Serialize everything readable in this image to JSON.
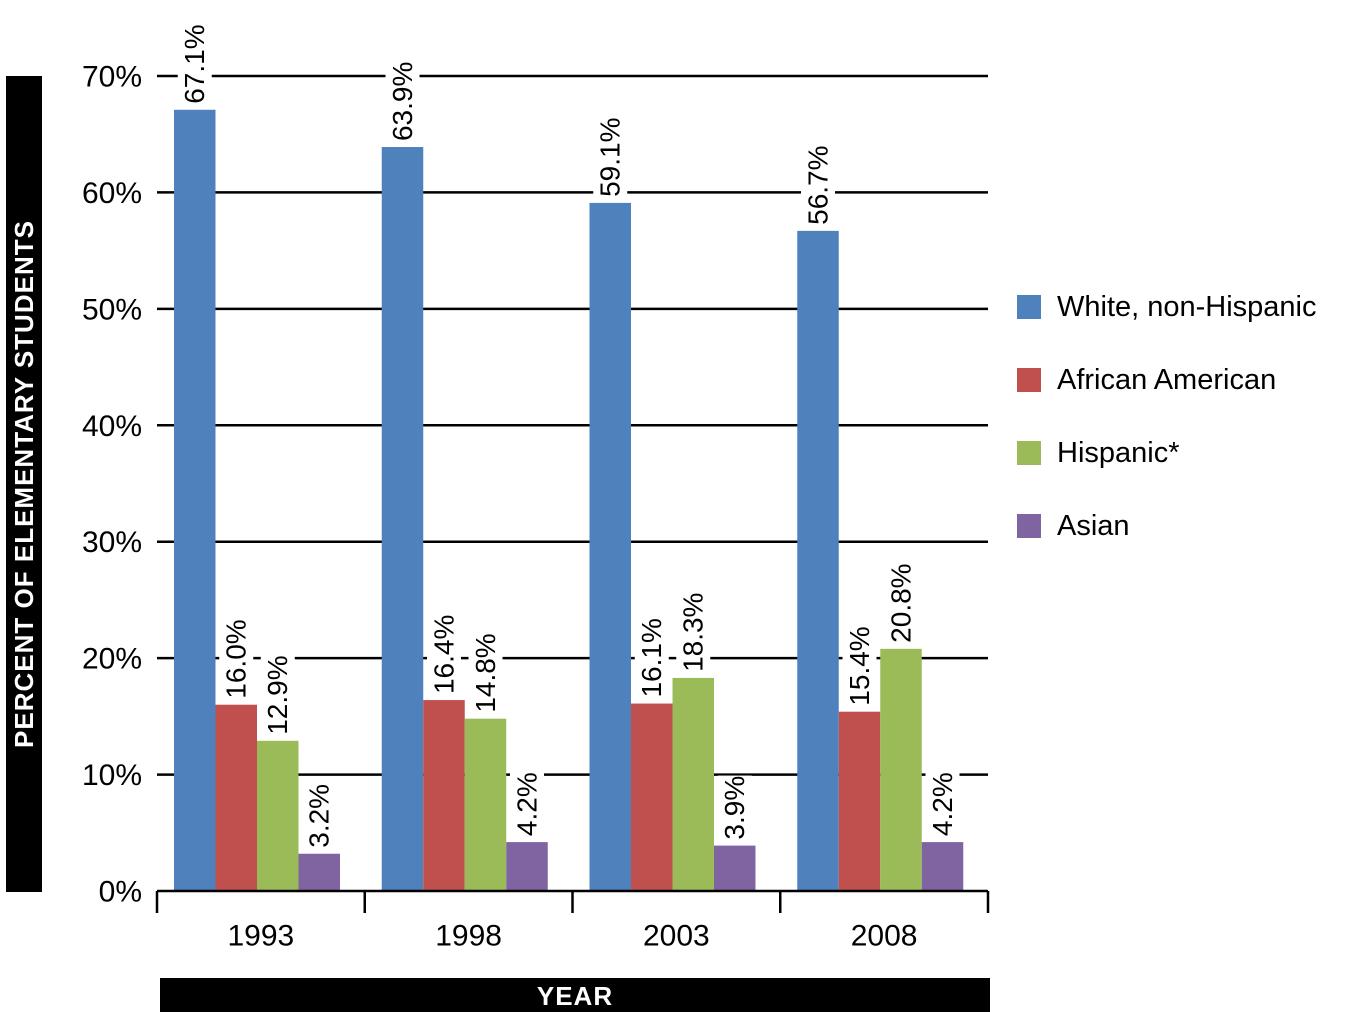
{
  "chart_data": {
    "type": "bar",
    "xlabel": "YEAR",
    "ylabel": "PERCENT OF ELEMENTARY STUDENTS",
    "categories": [
      "1993",
      "1998",
      "2003",
      "2008"
    ],
    "ylim": [
      0,
      70
    ],
    "yticks": [
      0,
      10,
      20,
      30,
      40,
      50,
      60,
      70
    ],
    "ytick_labels": [
      "0%",
      "10%",
      "20%",
      "30%",
      "40%",
      "50%",
      "60%",
      "70%"
    ],
    "grid": true,
    "legend_position": "right",
    "series": [
      {
        "name": "White, non-Hispanic",
        "color": "#4f81bd",
        "values": [
          67.1,
          63.9,
          59.1,
          56.7
        ],
        "labels": [
          "67.1%",
          "63.9%",
          "59.1%",
          "56.7%"
        ]
      },
      {
        "name": "African American",
        "color": "#c0504d",
        "values": [
          16.0,
          16.4,
          16.1,
          15.4
        ],
        "labels": [
          "16.0%",
          "16.4%",
          "16.1%",
          "15.4%"
        ]
      },
      {
        "name": "Hispanic*",
        "color": "#9bbb59",
        "values": [
          12.9,
          14.8,
          18.3,
          20.8
        ],
        "labels": [
          "12.9%",
          "14.8%",
          "18.3%",
          "20.8%"
        ]
      },
      {
        "name": "Asian",
        "color": "#8064a2",
        "values": [
          3.2,
          4.2,
          3.9,
          4.2
        ],
        "labels": [
          "3.2%",
          "4.2%",
          "3.9%",
          "4.2%"
        ]
      }
    ]
  }
}
